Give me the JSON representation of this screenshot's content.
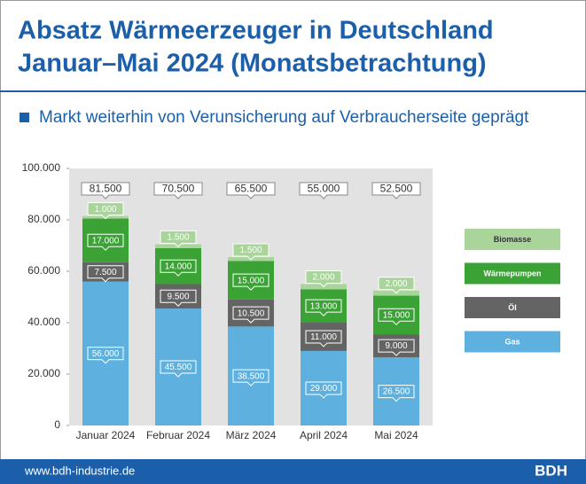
{
  "header": {
    "title_line1": "Absatz Wärmeerzeuger in Deutschland",
    "title_line2": "Januar–Mai 2024 (Monatsbetrachtung)",
    "subtitle": "Markt weiterhin von Verunsicherung auf Verbraucherseite geprägt"
  },
  "chart_data": {
    "type": "bar",
    "stacked": true,
    "categories": [
      "Januar 2024",
      "Februar 2024",
      "März 2024",
      "April 2024",
      "Mai 2024"
    ],
    "series": [
      {
        "name": "Gas",
        "color": "#5eb0de",
        "values": [
          56000,
          45500,
          38500,
          29000,
          26500
        ],
        "value_labels": [
          "56.000",
          "45.500",
          "38.500",
          "29.000",
          "26.500"
        ]
      },
      {
        "name": "Öl",
        "color": "#646464",
        "values": [
          7500,
          9500,
          10500,
          11000,
          9000
        ],
        "value_labels": [
          "7.500",
          "9.500",
          "10.500",
          "11.000",
          "9.000"
        ]
      },
      {
        "name": "Wärmepumpen",
        "color": "#3ba336",
        "values": [
          17000,
          14000,
          15000,
          13000,
          15000
        ],
        "value_labels": [
          "17.000",
          "14.000",
          "15.000",
          "13.000",
          "15.000"
        ]
      },
      {
        "name": "Biomasse",
        "color": "#a9d59b",
        "values": [
          1000,
          1500,
          1500,
          2000,
          2000
        ],
        "value_labels": [
          "1.000",
          "1.500",
          "1.500",
          "2.000",
          "2.000"
        ]
      }
    ],
    "totals": {
      "values": [
        81500,
        70500,
        65500,
        55000,
        52500
      ],
      "value_labels": [
        "81.500",
        "70.500",
        "65.500",
        "55.000",
        "52.500"
      ]
    },
    "ylim": [
      0,
      100000
    ],
    "yticks": [
      0,
      {
        "value": 20000,
        "label": "20.000"
      },
      {
        "value": 40000,
        "label": "40.000"
      },
      {
        "value": 60000,
        "label": "60.000"
      },
      {
        "value": 80000,
        "label": "80.000"
      },
      {
        "value": 100000,
        "label": "100.000"
      }
    ]
  },
  "footer": {
    "url": "www.bdh-industrie.de",
    "brand": "BDH"
  }
}
